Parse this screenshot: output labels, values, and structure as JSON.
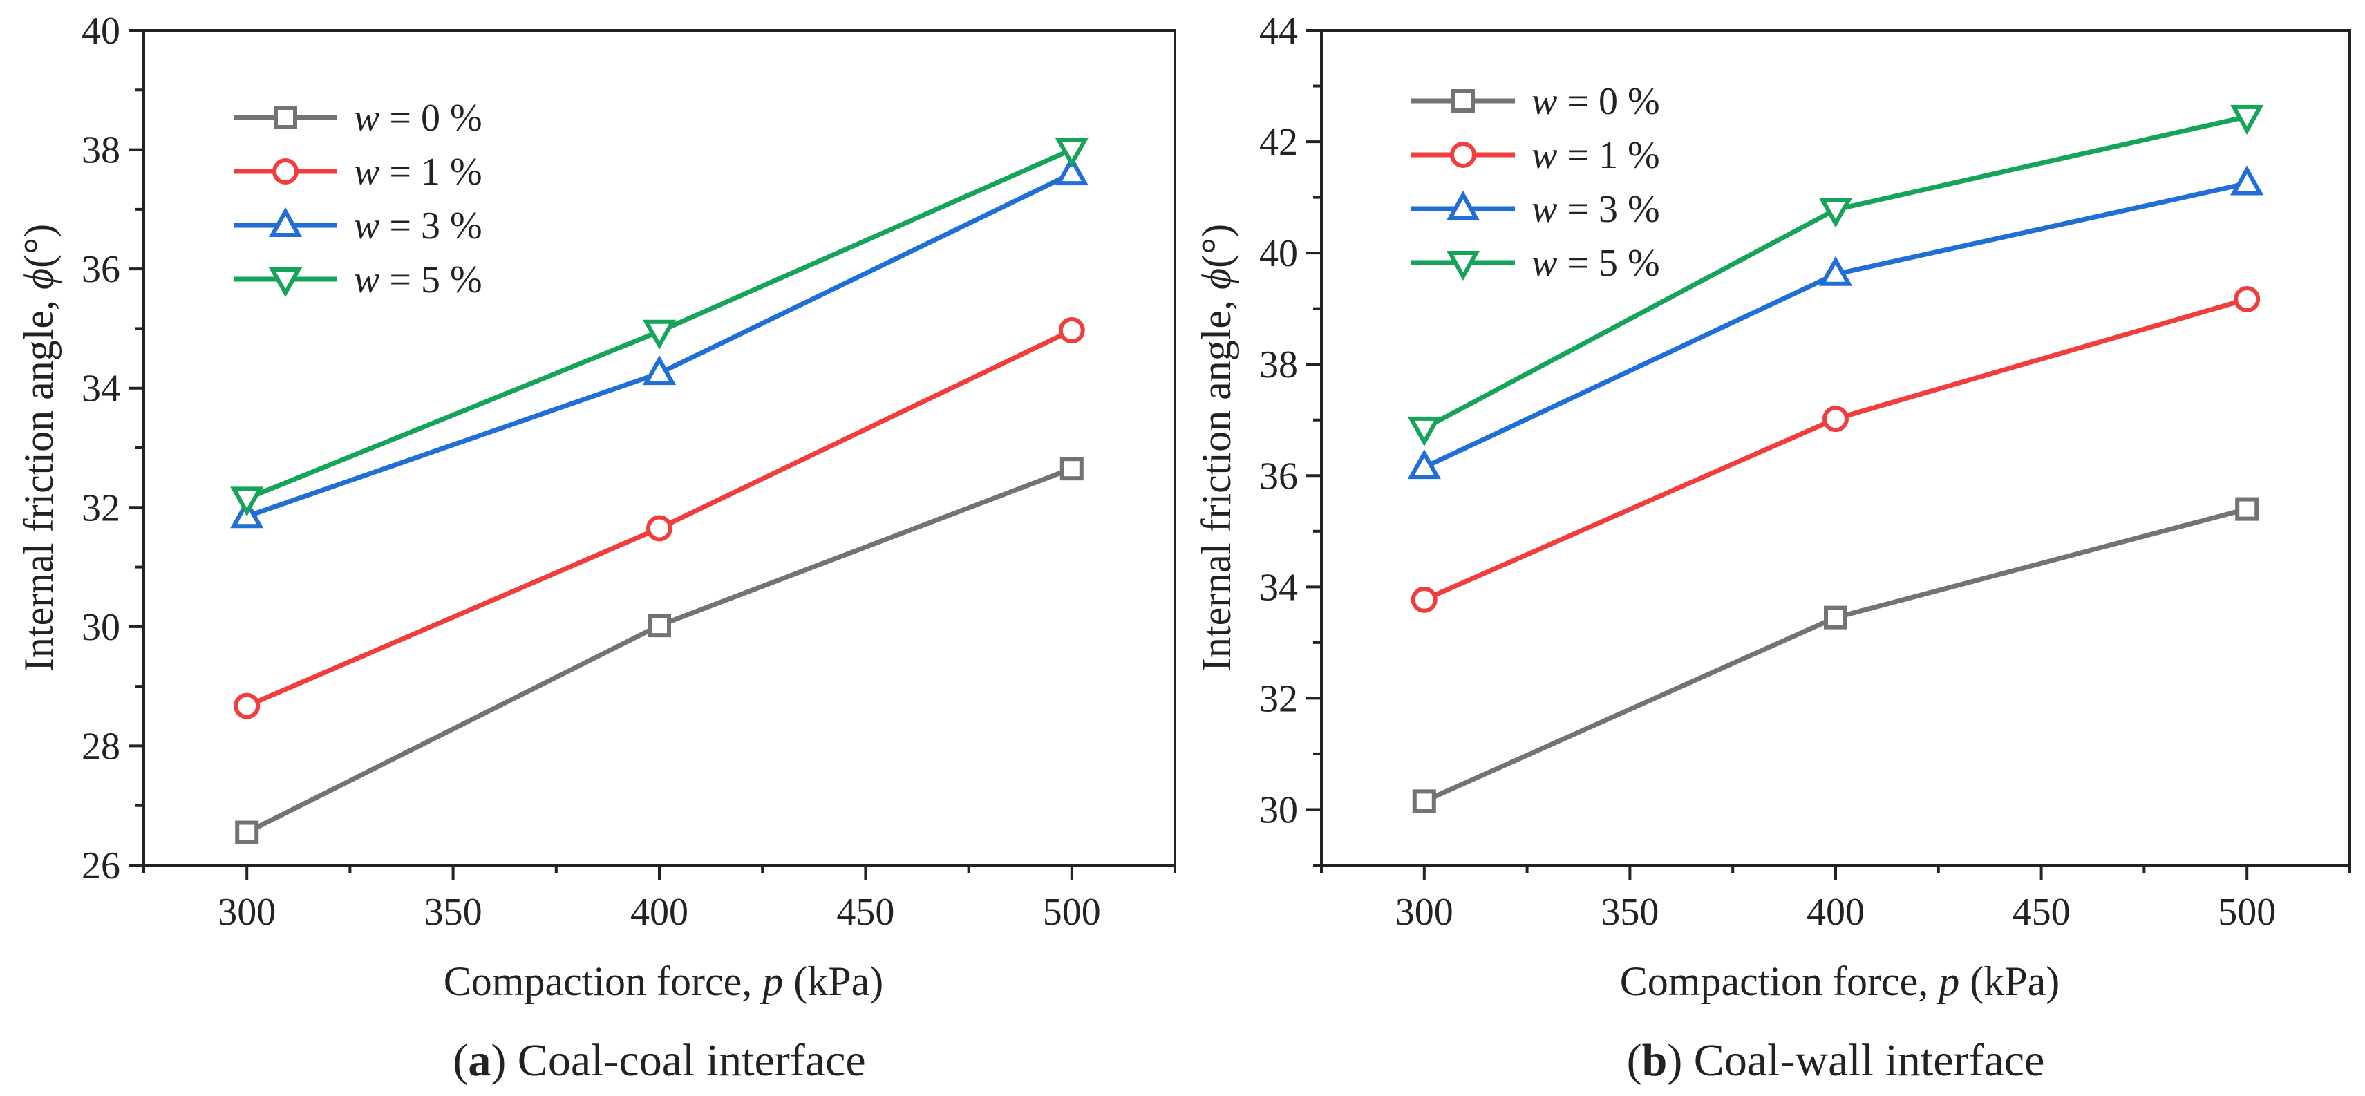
{
  "colors": {
    "w0": "#737373",
    "w1": "#f23d3d",
    "w3": "#1f6fd6",
    "w5": "#16a35a",
    "axis": "#222222"
  },
  "chart_data": [
    {
      "type": "line",
      "panel_label": "a",
      "caption": "Coal-coal interface",
      "xlabel_text": "Compaction force, ",
      "xlabel_var": "p",
      "xlabel_unit": " (kPa)",
      "ylabel_text": "Internal friction angle, ",
      "ylabel_var": "ϕ",
      "ylabel_unit": "(°)",
      "xlim": [
        275,
        525
      ],
      "ylim": [
        26,
        40
      ],
      "x": [
        300,
        400,
        500
      ],
      "xticks": [
        300,
        350,
        400,
        450,
        500
      ],
      "yticks": [
        26,
        28,
        30,
        32,
        34,
        36,
        38,
        40
      ],
      "legend_position": "top-left",
      "series": [
        {
          "name": "w = 0 %",
          "var": "w",
          "rest": " = 0 %",
          "color": "#737373",
          "marker": "square",
          "values": [
            26.55,
            30.02,
            32.65
          ]
        },
        {
          "name": "w = 1 %",
          "var": "w",
          "rest": " = 1 %",
          "color": "#f23d3d",
          "marker": "circle",
          "values": [
            28.67,
            31.65,
            34.97
          ]
        },
        {
          "name": "w = 3 %",
          "var": "w",
          "rest": " = 3 %",
          "color": "#1f6fd6",
          "marker": "triangle-up",
          "values": [
            31.85,
            34.25,
            37.6
          ]
        },
        {
          "name": "w = 5 %",
          "var": "w",
          "rest": " = 5 %",
          "color": "#16a35a",
          "marker": "triangle-down",
          "values": [
            32.15,
            34.95,
            38.0
          ]
        }
      ]
    },
    {
      "type": "line",
      "panel_label": "b",
      "caption": "Coal-wall interface",
      "xlabel_text": "Compaction force, ",
      "xlabel_var": "p",
      "xlabel_unit": " (kPa)",
      "ylabel_text": "Internal friction angle, ",
      "ylabel_var": "ϕ",
      "ylabel_unit": "(°)",
      "xlim": [
        275,
        525
      ],
      "ylim": [
        29,
        44
      ],
      "x": [
        300,
        400,
        500
      ],
      "xticks": [
        300,
        350,
        400,
        450,
        500
      ],
      "yticks": [
        30,
        32,
        34,
        36,
        38,
        40,
        42,
        44
      ],
      "legend_position": "top-left",
      "series": [
        {
          "name": "w = 0 %",
          "var": "w",
          "rest": " = 0 %",
          "color": "#737373",
          "marker": "square",
          "values": [
            30.15,
            33.45,
            35.4
          ]
        },
        {
          "name": "w = 1 %",
          "var": "w",
          "rest": " = 1 %",
          "color": "#f23d3d",
          "marker": "circle",
          "values": [
            33.77,
            37.02,
            39.17
          ]
        },
        {
          "name": "w = 3 %",
          "var": "w",
          "rest": " = 3 %",
          "color": "#1f6fd6",
          "marker": "triangle-up",
          "values": [
            36.15,
            39.62,
            41.25
          ]
        },
        {
          "name": "w = 5 %",
          "var": "w",
          "rest": " = 5 %",
          "color": "#16a35a",
          "marker": "triangle-down",
          "values": [
            36.85,
            40.78,
            42.45
          ]
        }
      ]
    }
  ]
}
